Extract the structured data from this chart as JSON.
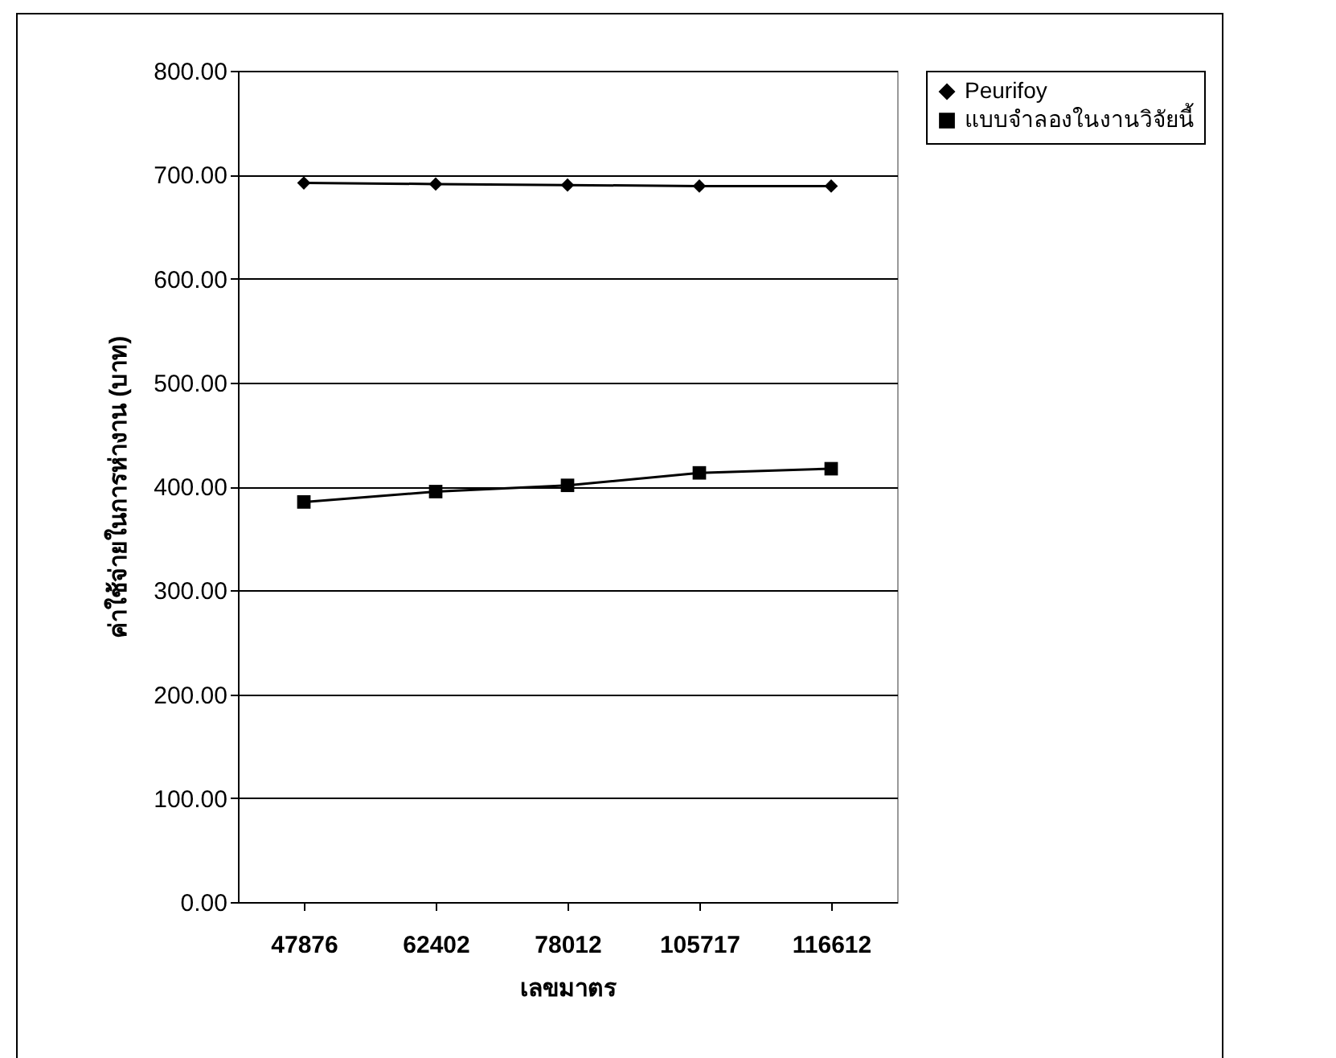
{
  "chart_data": {
    "type": "line",
    "xlabel": "เลขมาตร",
    "ylabel": "ค่าใช้จ่ายในการห่างาน (บาท)",
    "categories": [
      "47876",
      "62402",
      "78012",
      "105717",
      "116612"
    ],
    "series": [
      {
        "name": "Peurifoy",
        "color": "#000000",
        "marker": "diamond",
        "values": [
          692,
          691,
          690,
          689,
          689
        ]
      },
      {
        "name": "แบบจำลองในงานวิจัยนี้",
        "color": "#000000",
        "marker": "square",
        "values": [
          385,
          395,
          401,
          413,
          417
        ]
      }
    ],
    "ylim": [
      0,
      800
    ],
    "yticks": [
      {
        "value": 0,
        "label": "0.00"
      },
      {
        "value": 100,
        "label": "100.00"
      },
      {
        "value": 200,
        "label": "200.00"
      },
      {
        "value": 300,
        "label": "300.00"
      },
      {
        "value": 400,
        "label": "400.00"
      },
      {
        "value": 500,
        "label": "500.00"
      },
      {
        "value": 600,
        "label": "600.00"
      },
      {
        "value": 700,
        "label": "700.00"
      },
      {
        "value": 800,
        "label": "800.00"
      }
    ],
    "grid": "y",
    "legend": "right"
  }
}
